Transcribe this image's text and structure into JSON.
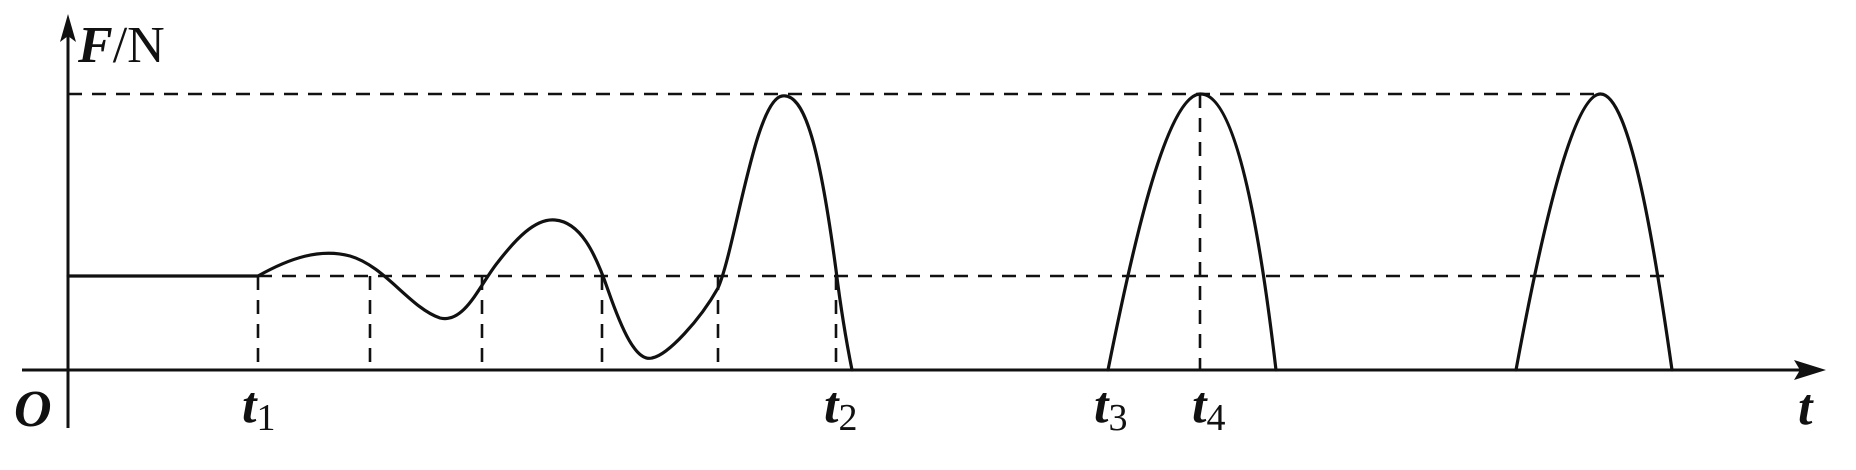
{
  "axes": {
    "y_label_var": "F",
    "y_label_unit": "/N",
    "x_label": "t",
    "origin": "O"
  },
  "ticks": [
    {
      "var": "t",
      "sub": "1"
    },
    {
      "var": "t",
      "sub": "2"
    },
    {
      "var": "t",
      "sub": "3"
    },
    {
      "var": "t",
      "sub": "4"
    }
  ],
  "colors": {
    "ink": "#111111",
    "background": "#ffffff"
  }
}
